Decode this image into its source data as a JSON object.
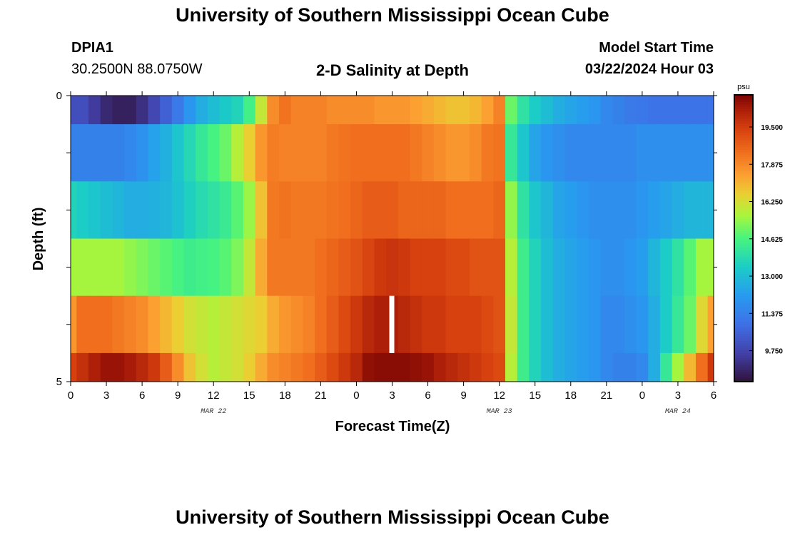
{
  "page": {
    "title_top": "University of Southern Mississippi Ocean Cube",
    "title_bottom": "University of Southern Mississippi Ocean Cube",
    "station_id": "DPIA1",
    "station_coords": "30.2500N  88.0750W",
    "model_start_label": "Model Start Time",
    "model_start_value": "03/22/2024 Hour 03"
  },
  "chart_data": {
    "type": "heatmap",
    "title": "2-D Salinity at Depth",
    "xlabel": "Forecast Time(Z)",
    "ylabel": "Depth (ft)",
    "x_hours_range": [
      0,
      54
    ],
    "x_ticks": [
      "0",
      "3",
      "6",
      "9",
      "12",
      "15",
      "18",
      "21",
      "0",
      "3",
      "6",
      "9",
      "12",
      "15",
      "18",
      "21",
      "0",
      "3",
      "6"
    ],
    "x_date_labels": [
      {
        "label": "MAR 22",
        "hour": 12
      },
      {
        "label": "MAR 23",
        "hour": 36
      },
      {
        "label": "MAR 24",
        "hour": 51
      }
    ],
    "y_ticks": [
      "0",
      "5"
    ],
    "y_range": [
      0,
      5
    ],
    "depth_layers": 5,
    "colorbar": {
      "unit": "psu",
      "range": [
        8.4,
        20.9
      ],
      "ticks": [
        "19.500",
        "17.875",
        "16.250",
        "14.625",
        "13.000",
        "11.375",
        "9.750"
      ],
      "tick_values": [
        19.5,
        17.875,
        16.25,
        14.625,
        13.0,
        11.375,
        9.75
      ]
    },
    "gap": {
      "hour": 27,
      "layer": 5
    },
    "hours": [
      0,
      1,
      2,
      3,
      4,
      5,
      6,
      7,
      8,
      9,
      10,
      11,
      12,
      13,
      14,
      15,
      16,
      17,
      18,
      19,
      20,
      21,
      22,
      23,
      24,
      25,
      26,
      27,
      28,
      29,
      30,
      31,
      32,
      33,
      34,
      35,
      36,
      37,
      38,
      39,
      40,
      41,
      42,
      43,
      44,
      45,
      46,
      47,
      48,
      49,
      50,
      51,
      52,
      53,
      54
    ],
    "layers": [
      {
        "depth_ft": [
          0,
          0.5
        ],
        "values": [
          10.0,
          10.0,
          9.5,
          9.0,
          8.8,
          8.8,
          9.2,
          9.8,
          10.5,
          11.2,
          12.0,
          12.6,
          13.0,
          13.3,
          13.6,
          14.5,
          16.0,
          17.8,
          18.3,
          18.0,
          18.0,
          18.0,
          17.8,
          17.8,
          17.8,
          17.8,
          17.6,
          17.6,
          17.6,
          17.4,
          17.2,
          17.0,
          16.8,
          16.8,
          17.0,
          17.4,
          18.0,
          15.0,
          14.0,
          13.4,
          13.0,
          12.6,
          12.4,
          12.2,
          12.0,
          11.6,
          11.4,
          11.2,
          11.1,
          11.0,
          11.0,
          11.0,
          11.0,
          11.0,
          11.0
        ]
      },
      {
        "depth_ft": [
          0.5,
          1.5
        ],
        "values": [
          11.4,
          11.4,
          11.4,
          11.4,
          11.4,
          11.6,
          11.9,
          12.3,
          12.7,
          13.2,
          13.7,
          14.2,
          14.6,
          15.0,
          15.8,
          16.6,
          17.6,
          18.1,
          18.0,
          18.0,
          18.0,
          18.0,
          18.2,
          18.3,
          18.4,
          18.4,
          18.4,
          18.4,
          18.4,
          18.2,
          18.0,
          17.8,
          17.6,
          17.6,
          17.8,
          18.2,
          18.3,
          14.2,
          13.2,
          12.4,
          12.0,
          11.8,
          11.6,
          11.6,
          11.6,
          11.6,
          11.6,
          11.6,
          11.8,
          11.8,
          11.8,
          11.8,
          11.8,
          11.8,
          11.8
        ]
      },
      {
        "depth_ft": [
          1.5,
          2.5
        ],
        "values": [
          13.6,
          13.4,
          13.2,
          13.0,
          12.8,
          12.6,
          12.6,
          12.7,
          12.8,
          13.1,
          13.5,
          13.8,
          14.0,
          14.3,
          14.8,
          15.5,
          16.8,
          18.2,
          18.3,
          18.2,
          18.2,
          18.2,
          18.3,
          18.4,
          18.6,
          18.8,
          18.8,
          18.8,
          18.6,
          18.6,
          18.6,
          18.6,
          18.4,
          18.4,
          18.4,
          18.4,
          18.6,
          15.4,
          14.0,
          13.2,
          12.8,
          12.4,
          12.2,
          12.0,
          11.8,
          11.8,
          11.8,
          11.8,
          12.0,
          12.2,
          12.4,
          12.6,
          12.8,
          12.8,
          12.8
        ]
      },
      {
        "depth_ft": [
          2.5,
          3.5
        ],
        "values": [
          15.6,
          15.6,
          15.6,
          15.6,
          15.6,
          15.4,
          15.2,
          15.0,
          14.8,
          14.6,
          14.4,
          14.5,
          14.6,
          14.8,
          15.2,
          16.0,
          17.2,
          18.2,
          18.2,
          18.2,
          18.2,
          18.4,
          18.6,
          18.8,
          19.0,
          19.3,
          19.6,
          19.7,
          19.6,
          19.4,
          19.4,
          19.4,
          19.2,
          19.2,
          19.0,
          19.0,
          19.0,
          15.8,
          14.4,
          13.6,
          13.0,
          12.6,
          12.4,
          12.2,
          12.0,
          11.8,
          11.8,
          12.0,
          12.2,
          12.8,
          13.4,
          14.0,
          14.8,
          15.6,
          15.6
        ]
      },
      {
        "depth_ft": [
          3.5,
          4.5
        ],
        "values": [
          17.6,
          18.4,
          18.4,
          18.4,
          18.2,
          18.0,
          17.8,
          17.4,
          17.0,
          16.6,
          16.2,
          16.0,
          15.8,
          16.0,
          16.2,
          16.4,
          16.6,
          17.2,
          17.6,
          17.8,
          18.0,
          18.4,
          18.8,
          19.2,
          19.6,
          20.0,
          20.2,
          20.2,
          20.0,
          19.8,
          19.6,
          19.6,
          19.4,
          19.4,
          19.4,
          19.2,
          19.0,
          16.0,
          14.4,
          13.6,
          13.0,
          12.6,
          12.4,
          12.2,
          12.0,
          11.6,
          11.6,
          11.8,
          12.0,
          12.6,
          13.4,
          14.2,
          15.0,
          16.4,
          17.4
        ]
      },
      {
        "depth_ft": [
          4.5,
          5.0
        ],
        "values": [
          19.4,
          19.8,
          20.2,
          20.5,
          20.5,
          20.3,
          20.0,
          19.6,
          18.8,
          17.8,
          16.8,
          16.2,
          15.8,
          16.0,
          16.2,
          16.6,
          17.2,
          17.8,
          18.0,
          18.2,
          18.4,
          18.8,
          19.2,
          19.6,
          20.0,
          20.6,
          20.7,
          20.7,
          20.7,
          20.6,
          20.5,
          20.2,
          20.0,
          19.8,
          19.6,
          19.4,
          19.2,
          15.8,
          14.4,
          13.6,
          13.0,
          12.6,
          12.4,
          12.2,
          12.0,
          11.6,
          11.4,
          11.4,
          11.6,
          12.6,
          14.2,
          15.6,
          17.0,
          18.4,
          19.6
        ]
      }
    ]
  }
}
